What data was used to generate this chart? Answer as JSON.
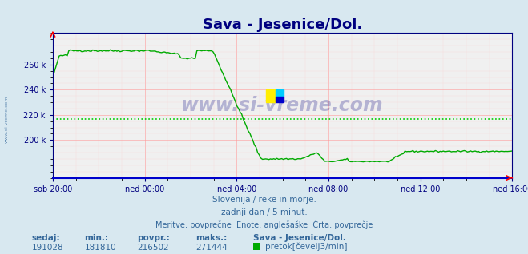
{
  "title": "Sava - Jesenice/Dol.",
  "title_color": "#000080",
  "title_fontsize": 13,
  "bg_color": "#d8e8f0",
  "plot_bg_color": "#f0f0f0",
  "grid_major_color": "#ff9999",
  "grid_minor_color": "#ffcccc",
  "line_color": "#00aa00",
  "avg_line_color": "#00cc00",
  "avg_value": 216502,
  "min_value": 181810,
  "max_value": 271444,
  "sedaj_value": 191028,
  "povpr_value": 216502,
  "x_labels": [
    "sob 20:00",
    "ned 00:00",
    "ned 04:00",
    "ned 08:00",
    "ned 12:00",
    "ned 16:00"
  ],
  "axis_color": "#000080",
  "tick_color": "#000080",
  "text_color": "#336699",
  "watermark_color": "#000080",
  "footer_line1": "Slovenija / reke in morje.",
  "footer_line2": "zadnji dan / 5 minut.",
  "footer_line3": "Meritve: povprečne  Enote: anglešaške  Črta: povprečje",
  "legend_label": "pretok[čevelj3/min]",
  "legend_station": "Sava - Jesenice/Dol.",
  "stats_headers": [
    "sedaj:",
    "min.:",
    "povpr.:",
    "maks.:"
  ],
  "stats_values": [
    "191028",
    "181810",
    "216502",
    "271444"
  ],
  "ylim": [
    170000,
    285000
  ],
  "yticks": [
    200000,
    220000,
    240000,
    260000
  ],
  "num_points": 288
}
